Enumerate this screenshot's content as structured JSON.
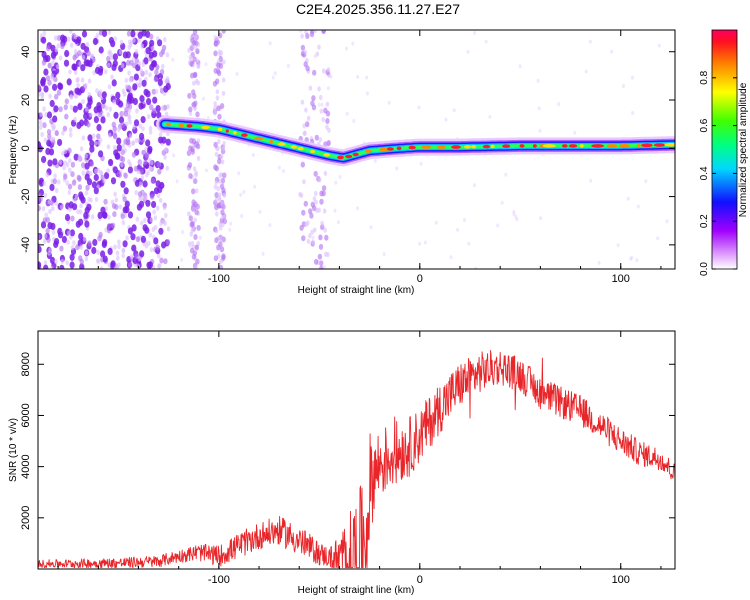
{
  "title": "C2E4.2025.356.11.27.E27",
  "colors": {
    "line": "#e8262a",
    "axis": "#000000",
    "spectrogram_noise": "#7a1fe6",
    "spectrogram_track_core": "#ff1a2e"
  },
  "chart_data": [
    {
      "type": "heatmap",
      "xlabel": "Height of straight line (km)",
      "ylabel": "Frequency (Hz)",
      "colorbar_label": "Normalized spectral amplitude",
      "xlim": [
        -190,
        127
      ],
      "ylim": [
        -50,
        49
      ],
      "xticks": [
        -100,
        0,
        100
      ],
      "xtick_labels": [
        "-100",
        "0",
        "100"
      ],
      "yticks": [
        -40,
        -20,
        0,
        20,
        40
      ],
      "ytick_labels": [
        "-40",
        "-20",
        "0",
        "20",
        "40"
      ],
      "colorbar_range": [
        0,
        1
      ],
      "colorbar_ticks": [
        0.0,
        0.2,
        0.4,
        0.6,
        0.8
      ],
      "colorbar_tick_labels": [
        "0.0",
        "0.2",
        "0.4",
        "0.6",
        "0.8"
      ],
      "colormap": "rainbow (magenta-blue-cyan-green-yellow-red)",
      "track": {
        "x": [
          -127,
          -110,
          -100,
          -85,
          -70,
          -55,
          -45,
          -38,
          -25,
          -10,
          0,
          20,
          50,
          80,
          100,
          127
        ],
        "y": [
          10,
          9,
          8,
          5,
          2,
          -1,
          -3,
          -4,
          -1,
          0,
          0.5,
          0.5,
          1,
          1,
          1,
          1.5
        ]
      },
      "noise_bands_x": [
        [
          -190,
          -125
        ],
        [
          -115,
          -110
        ],
        [
          -102,
          -97
        ],
        [
          -60,
          -45
        ]
      ]
    },
    {
      "type": "line",
      "xlabel": "Height of straight line (km)",
      "ylabel": "SNR (10 * v/v)",
      "xlim": [
        -190,
        127
      ],
      "ylim": [
        0,
        9300
      ],
      "xticks": [
        -100,
        0,
        100
      ],
      "xtick_labels": [
        "-100",
        "0",
        "100"
      ],
      "yticks": [
        2000,
        4000,
        6000,
        8000
      ],
      "ytick_labels": [
        "2000",
        "4000",
        "6000",
        "8000"
      ],
      "envelope": {
        "x": [
          -190,
          -150,
          -130,
          -120,
          -110,
          -100,
          -90,
          -80,
          -70,
          -60,
          -50,
          -40,
          -35,
          -30,
          -26,
          -25,
          -20,
          -15,
          -10,
          -5,
          0,
          10,
          20,
          30,
          40,
          50,
          60,
          70,
          80,
          90,
          100,
          110,
          120,
          127
        ],
        "y": [
          200,
          230,
          300,
          500,
          650,
          500,
          900,
          1300,
          1500,
          1100,
          600,
          300,
          400,
          700,
          1500,
          3400,
          4100,
          4400,
          4600,
          4800,
          5200,
          6300,
          7200,
          7700,
          7900,
          7600,
          6900,
          6500,
          6200,
          5600,
          5000,
          4500,
          4300,
          3700
        ]
      },
      "noise_amplitude": {
        "x": [
          -190,
          -120,
          -90,
          -60,
          -45,
          -30,
          -20,
          0,
          40,
          100,
          127
        ],
        "y": [
          150,
          250,
          500,
          600,
          400,
          2500,
          1400,
          1100,
          700,
          550,
          400
        ]
      }
    }
  ]
}
